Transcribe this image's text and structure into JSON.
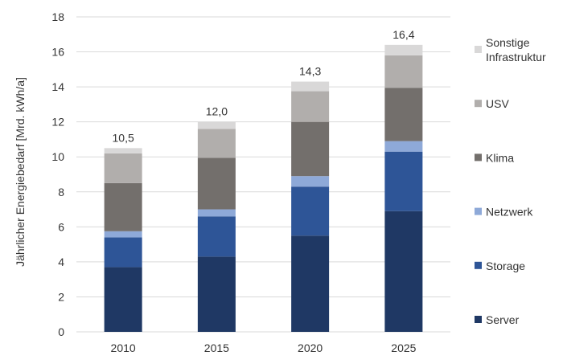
{
  "chart_data": {
    "type": "bar",
    "stacked": true,
    "title": "",
    "xlabel": "",
    "ylabel": "Jährlicher Energiebedarf [Mrd. kWh/a]",
    "ylim": [
      0,
      18
    ],
    "yticks": [
      "0",
      "2",
      "4",
      "6",
      "8",
      "10",
      "12",
      "14",
      "16",
      "18"
    ],
    "grid": "horizontal",
    "legend_position": "right",
    "categories": [
      "2010",
      "2015",
      "2020",
      "2025"
    ],
    "totals": [
      "10,5",
      "12,0",
      "14,3",
      "16,4"
    ],
    "series": [
      {
        "name": "Server",
        "color": "#1f3864",
        "values": [
          3.7,
          4.3,
          5.5,
          6.9
        ]
      },
      {
        "name": "Storage",
        "color": "#2e5597",
        "values": [
          1.7,
          2.3,
          2.8,
          3.4
        ]
      },
      {
        "name": "Netzwerk",
        "color": "#8ea9d8",
        "values": [
          0.35,
          0.4,
          0.6,
          0.6
        ]
      },
      {
        "name": "Klima",
        "color": "#736f6c",
        "values": [
          2.75,
          2.95,
          3.1,
          3.05
        ]
      },
      {
        "name": "USV",
        "color": "#b1aeac",
        "values": [
          1.7,
          1.65,
          1.75,
          1.85
        ]
      },
      {
        "name": "Sonstige Infrastruktur",
        "label_lines": [
          "Sonstige",
          "Infrastruktur"
        ],
        "color": "#d9d8d8",
        "values": [
          0.3,
          0.4,
          0.55,
          0.6
        ]
      }
    ]
  }
}
